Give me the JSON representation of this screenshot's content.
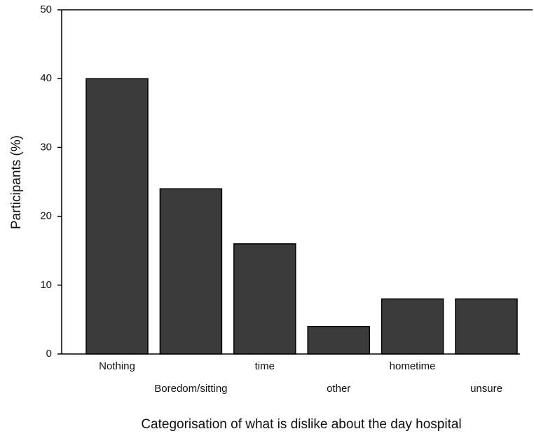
{
  "chart_data": {
    "type": "bar",
    "x_label": "Categorisation of what is dislike about the day hospital",
    "y_label": "Participants (%)",
    "categories": [
      "Nothing",
      "Boredom/sitting",
      "time",
      "other",
      "hometime",
      "unsure"
    ],
    "values": [
      40,
      24,
      16,
      4,
      8,
      8
    ],
    "color": "#3b3b3b",
    "ylim": [
      0,
      50
    ],
    "yticks": [
      0,
      10,
      20,
      30,
      40,
      50
    ],
    "grid": false
  }
}
